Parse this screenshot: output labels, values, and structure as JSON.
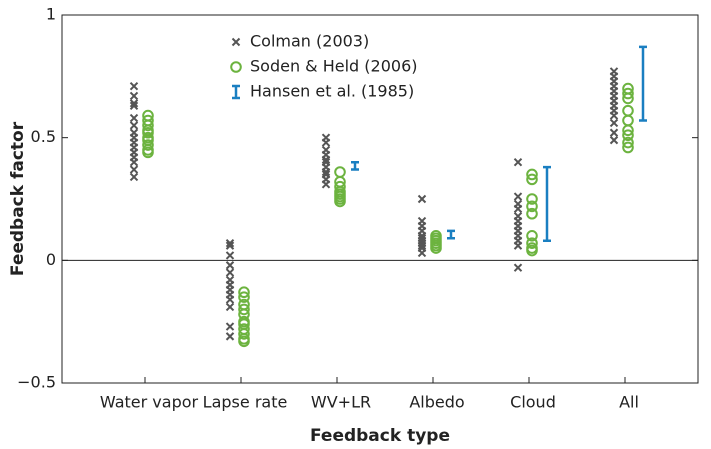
{
  "chart_data": {
    "type": "strip",
    "x_label": "Feedback type",
    "y_label": "Feedback factor",
    "categories": [
      "Water vapor",
      "Lapse rate",
      "WV+LR",
      "Albedo",
      "Cloud",
      "All"
    ],
    "ylim": [
      -0.5,
      1
    ],
    "yticks": [
      {
        "value": -0.5,
        "label": "−0.5"
      },
      0,
      0.5,
      1
    ],
    "legend": "upper center",
    "series": [
      {
        "name": "Colman (2003)",
        "color": "#555555",
        "marker": "x",
        "values": [
          [
            0.71,
            0.67,
            0.64,
            0.63,
            0.58,
            0.55,
            0.52,
            0.5,
            0.48,
            0.46,
            0.44,
            0.42,
            0.4,
            0.37,
            0.34
          ],
          [
            0.07,
            0.06,
            0.02,
            -0.02,
            -0.05,
            -0.08,
            -0.1,
            -0.12,
            -0.14,
            -0.16,
            -0.19,
            -0.27,
            -0.31
          ],
          [
            0.5,
            0.48,
            0.45,
            0.43,
            0.41,
            0.4,
            0.38,
            0.36,
            0.35,
            0.33,
            0.31
          ],
          [
            0.25,
            0.16,
            0.14,
            0.12,
            0.1,
            0.09,
            0.08,
            0.07,
            0.06,
            0.05,
            0.03
          ],
          [
            0.4,
            0.26,
            0.23,
            0.21,
            0.18,
            0.16,
            0.14,
            0.12,
            0.1,
            0.08,
            0.06,
            -0.03
          ],
          [
            0.77,
            0.75,
            0.73,
            0.71,
            0.69,
            0.67,
            0.65,
            0.63,
            0.61,
            0.59,
            0.56,
            0.52,
            0.49
          ]
        ]
      },
      {
        "name": "Soden & Held (2006)",
        "color": "#6cb33f",
        "marker": "o",
        "values": [
          [
            0.59,
            0.57,
            0.55,
            0.53,
            0.52,
            0.5,
            0.49,
            0.47,
            0.45,
            0.44
          ],
          [
            -0.13,
            -0.15,
            -0.18,
            -0.2,
            -0.22,
            -0.25,
            -0.26,
            -0.28,
            -0.3,
            -0.32,
            -0.33
          ],
          [
            0.36,
            0.32,
            0.3,
            0.28,
            0.27,
            0.26,
            0.25,
            0.24
          ],
          [
            0.1,
            0.09,
            0.08,
            0.07,
            0.06,
            0.05
          ],
          [
            0.35,
            0.33,
            0.25,
            0.22,
            0.19,
            0.1,
            0.07,
            0.05,
            0.04
          ],
          [
            0.7,
            0.68,
            0.66,
            0.61,
            0.57,
            0.53,
            0.51,
            0.48,
            0.46
          ]
        ]
      },
      {
        "name": "Hansen et al. (1985)",
        "color": "#1a7fc1",
        "marker": "errorbar",
        "values": [
          null,
          null,
          0.385,
          0.105,
          0.23,
          0.72
        ],
        "errors": [
          null,
          null,
          0.015,
          0.015,
          0.15,
          0.15
        ]
      }
    ]
  }
}
